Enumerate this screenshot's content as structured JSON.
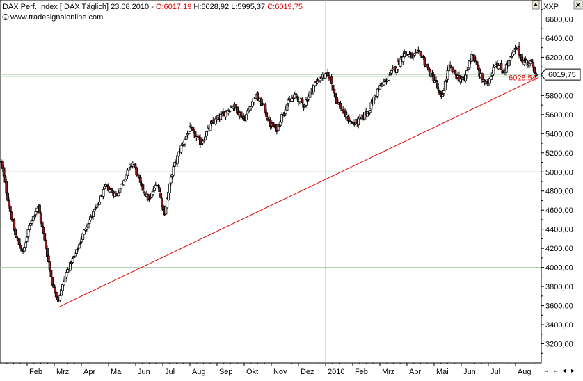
{
  "header": {
    "instrument": "DAX Perf. Index [.DAX  Täglich]",
    "date": "23.08.2010",
    "open_label": "O:6017,19",
    "high_label": "H:6028,92",
    "low_label": "L:5995,37",
    "close_label": "C:6019,75",
    "source": "www.tradesignalonline.com",
    "source_icon": "copyright-icon"
  },
  "right_panel": {
    "symbol": "XXP",
    "last_price_label": "6019,75",
    "trendline_value_label": "6028,54"
  },
  "colors": {
    "trendline": "#e00000",
    "up_candle_fill": "#ffffff",
    "down_candle_fill": "#8b1a1a",
    "candle_outline": "#000000",
    "grid_line": "#a8c8a8",
    "accent_red": "#e00000"
  },
  "chart_data": {
    "type": "candlestick",
    "title": "DAX Perf. Index [.DAX  Täglich]",
    "interval": "daily",
    "ylim": [
      3000,
      6800
    ],
    "y_ticks": [
      3200,
      3400,
      3600,
      3800,
      4000,
      4200,
      4400,
      4600,
      4800,
      5000,
      5200,
      5400,
      5600,
      5800,
      6000,
      6200,
      6400,
      6600
    ],
    "y_tick_labels": [
      "3200,00",
      "3400,00",
      "3600,00",
      "3800,00",
      "4000,00",
      "4200,00",
      "4400,00",
      "4600,00",
      "4800,00",
      "5000,00",
      "5200,00",
      "5400,00",
      "5600,00",
      "5800,00",
      "6000,00",
      "6200,00",
      "6400,00",
      "6600,00"
    ],
    "horizontal_gridlines": [
      4000,
      5000,
      6000
    ],
    "x_labels": [
      {
        "label": "Feb",
        "month": 1
      },
      {
        "label": "Mrz",
        "month": 2
      },
      {
        "label": "Apr",
        "month": 3
      },
      {
        "label": "Mai",
        "month": 4
      },
      {
        "label": "Jun",
        "month": 5
      },
      {
        "label": "Jul",
        "month": 6
      },
      {
        "label": "Aug",
        "month": 7
      },
      {
        "label": "Sep",
        "month": 8
      },
      {
        "label": "Okt",
        "month": 9
      },
      {
        "label": "Nov",
        "month": 10
      },
      {
        "label": "Dez",
        "month": 11
      },
      {
        "label": "2010",
        "month": 12
      },
      {
        "label": "Feb",
        "month": 13
      },
      {
        "label": "Mrz",
        "month": 14
      },
      {
        "label": "Apr",
        "month": 15
      },
      {
        "label": "Mai",
        "month": 16
      },
      {
        "label": "Jun",
        "month": 17
      },
      {
        "label": "Jul",
        "month": 18
      },
      {
        "label": "Aug",
        "month": 19
      }
    ],
    "vertical_gridline_month": 12,
    "x_range_months": [
      0,
      19.95
    ],
    "close_path": [
      [
        0.05,
        5100
      ],
      [
        0.3,
        4700
      ],
      [
        0.55,
        4350
      ],
      [
        0.85,
        4150
      ],
      [
        1.1,
        4450
      ],
      [
        1.4,
        4650
      ],
      [
        1.7,
        4200
      ],
      [
        1.95,
        3800
      ],
      [
        2.15,
        3650
      ],
      [
        2.45,
        3950
      ],
      [
        2.8,
        4150
      ],
      [
        3.2,
        4450
      ],
      [
        3.6,
        4650
      ],
      [
        3.9,
        4850
      ],
      [
        4.3,
        4750
      ],
      [
        4.6,
        4950
      ],
      [
        4.9,
        5100
      ],
      [
        5.2,
        4850
      ],
      [
        5.5,
        4700
      ],
      [
        5.8,
        4900
      ],
      [
        6.05,
        4550
      ],
      [
        6.35,
        5000
      ],
      [
        6.65,
        5250
      ],
      [
        7.0,
        5450
      ],
      [
        7.4,
        5300
      ],
      [
        7.8,
        5500
      ],
      [
        8.2,
        5600
      ],
      [
        8.6,
        5700
      ],
      [
        9.0,
        5550
      ],
      [
        9.4,
        5800
      ],
      [
        9.7,
        5700
      ],
      [
        9.95,
        5500
      ],
      [
        10.2,
        5450
      ],
      [
        10.55,
        5700
      ],
      [
        10.9,
        5800
      ],
      [
        11.2,
        5700
      ],
      [
        11.55,
        5900
      ],
      [
        11.85,
        6000
      ],
      [
        12.15,
        6000
      ],
      [
        12.4,
        5750
      ],
      [
        12.7,
        5600
      ],
      [
        13.0,
        5500
      ],
      [
        13.3,
        5550
      ],
      [
        13.6,
        5650
      ],
      [
        13.9,
        5850
      ],
      [
        14.2,
        5950
      ],
      [
        14.6,
        6100
      ],
      [
        14.9,
        6250
      ],
      [
        15.2,
        6200
      ],
      [
        15.5,
        6250
      ],
      [
        15.8,
        6050
      ],
      [
        16.05,
        5950
      ],
      [
        16.25,
        5750
      ],
      [
        16.55,
        6100
      ],
      [
        16.85,
        6000
      ],
      [
        17.1,
        5950
      ],
      [
        17.4,
        6250
      ],
      [
        17.7,
        6000
      ],
      [
        17.95,
        5900
      ],
      [
        18.25,
        6150
      ],
      [
        18.55,
        6050
      ],
      [
        18.85,
        6200
      ],
      [
        19.05,
        6300
      ],
      [
        19.3,
        6150
      ],
      [
        19.55,
        6150
      ],
      [
        19.8,
        6019.75
      ]
    ],
    "trendline": {
      "start": [
        2.2,
        3590
      ],
      "end": [
        19.85,
        5990
      ],
      "label": "6028,54"
    },
    "last_candle": {
      "open": 6017.19,
      "high": 6028.92,
      "low": 5995.37,
      "close": 6019.75
    }
  }
}
